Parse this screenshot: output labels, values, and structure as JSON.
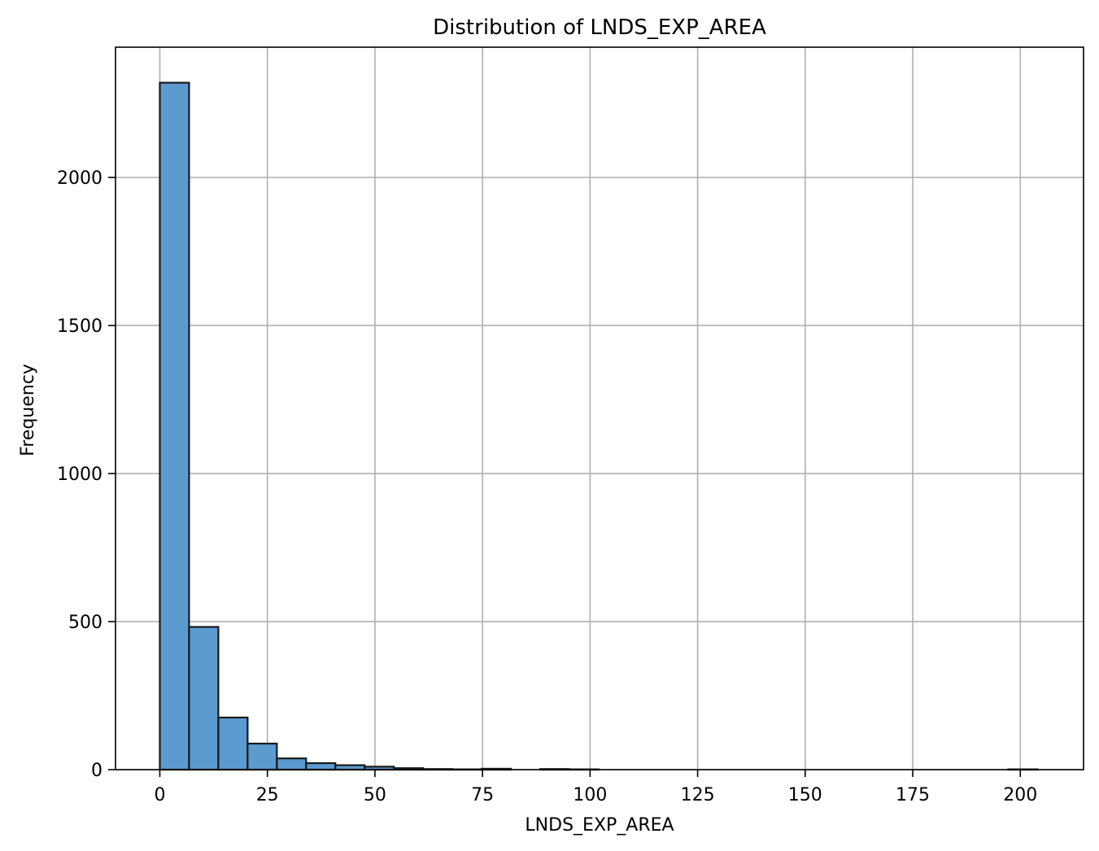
{
  "chart_data": {
    "type": "bar",
    "title": "Distribution of LNDS_EXP_AREA",
    "xlabel": "LNDS_EXP_AREA",
    "ylabel": "Frequency",
    "xlim": [
      -10.3,
      214.7
    ],
    "ylim": [
      0,
      2440
    ],
    "xticks": [
      0,
      25,
      50,
      75,
      100,
      125,
      150,
      175,
      200
    ],
    "yticks": [
      0,
      500,
      1000,
      1500,
      2000
    ],
    "grid": true,
    "bar_color": "#5b9bd0",
    "bar_edge_color": "#1a1a1a",
    "bin_edges": [
      0,
      6.8,
      13.6,
      20.4,
      27.2,
      34.0,
      40.8,
      47.6,
      54.4,
      61.2,
      68.0,
      74.8,
      81.6,
      88.4,
      95.2,
      102.0,
      108.8,
      115.6,
      122.4,
      129.2,
      136.0,
      142.8,
      149.6,
      156.4,
      163.2,
      170.0,
      176.8,
      183.6,
      190.4,
      197.2,
      204.0
    ],
    "counts": [
      2320,
      482,
      176,
      88,
      38,
      22,
      15,
      10,
      5,
      2,
      1,
      3,
      0,
      2,
      1,
      0,
      0,
      0,
      0,
      0,
      0,
      0,
      0,
      0,
      0,
      0,
      0,
      0,
      0,
      1
    ]
  }
}
